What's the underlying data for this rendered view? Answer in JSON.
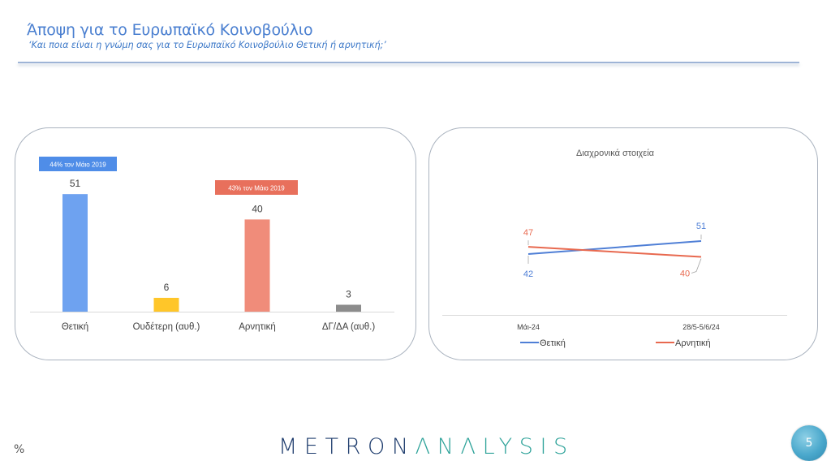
{
  "header": {
    "title": "Άποψη για το Ευρωπαϊκό Κοινοβούλιο",
    "subtitle": "‘Και ποια είναι η γνώμη σας για το Ευρωπαϊκό Κοινοβούλιο Θετική ή αρνητική;’"
  },
  "colors": {
    "accent_blue": "#6ea2f0",
    "yellow": "#ffc629",
    "salmon": "#f08c7a",
    "gray": "#8c8c8c",
    "callout_blue": "#4f8de8",
    "callout_red": "#e8705c",
    "line_blue": "#4f7fd6",
    "line_red": "#e8694f"
  },
  "chart_data": [
    {
      "type": "bar",
      "title": "",
      "categories": [
        "Θετική",
        "Ουδέτερη (αυθ.)",
        "Αρνητική",
        "ΔΓ/ΔΑ (αυθ.)"
      ],
      "values": [
        51,
        6,
        40,
        3
      ],
      "value_labels": [
        "51",
        "6",
        "40",
        "3"
      ],
      "colors": [
        "#6ea2f0",
        "#ffc629",
        "#f08c7a",
        "#8c8c8c"
      ],
      "annotations": [
        {
          "text": "44% τον Μάιο 2019",
          "category": "Θετική",
          "color": "#4f8de8"
        },
        {
          "text": "43% τον Μάιο 2019",
          "category": "Αρνητική",
          "color": "#e8705c"
        }
      ],
      "xlabel": "",
      "ylabel": "",
      "ylim": [
        0,
        55
      ],
      "grid": false,
      "legend": null
    },
    {
      "type": "line",
      "title": "Διαχρονικά στοιχεία",
      "categories": [
        "Μάι-24",
        "28/5-5/6/24"
      ],
      "series": [
        {
          "name": "Θετική",
          "values": [
            42,
            51
          ],
          "color": "#4f7fd6"
        },
        {
          "name": "Αρνητική",
          "values": [
            47,
            40
          ],
          "color": "#e8694f"
        }
      ],
      "xlabel": "",
      "ylabel": "",
      "grid": false,
      "legend_position": "bottom"
    }
  ],
  "footer": {
    "unit": "%",
    "logo_part1": "METRON",
    "logo_part2": "ΛNΛLYSIS",
    "page_number": "5"
  }
}
